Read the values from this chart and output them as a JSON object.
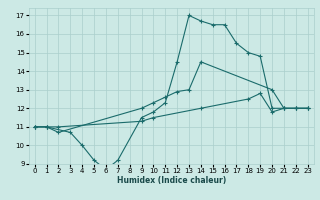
{
  "xlabel": "Humidex (Indice chaleur)",
  "xlim": [
    -0.5,
    23.5
  ],
  "ylim": [
    9,
    17.4
  ],
  "yticks": [
    9,
    10,
    11,
    12,
    13,
    14,
    15,
    16,
    17
  ],
  "xticks": [
    0,
    1,
    2,
    3,
    4,
    5,
    6,
    7,
    8,
    9,
    10,
    11,
    12,
    13,
    14,
    15,
    16,
    17,
    18,
    19,
    20,
    21,
    22,
    23
  ],
  "bg_color": "#cce9e5",
  "grid_color": "#aacfcc",
  "line_color": "#1a6b6b",
  "lines": [
    {
      "x": [
        0,
        1,
        3,
        4,
        5,
        6,
        7,
        9,
        10,
        11,
        12,
        13,
        14,
        15,
        16,
        17,
        18,
        19,
        20,
        21,
        22,
        23
      ],
      "y": [
        11,
        11,
        10.7,
        10,
        9.2,
        8.7,
        9.2,
        11.5,
        11.8,
        12.3,
        14.5,
        17.0,
        16.7,
        16.5,
        16.5,
        15.5,
        15.0,
        14.8,
        12.0,
        12.0,
        12.0,
        12.0
      ]
    },
    {
      "x": [
        0,
        1,
        2,
        9,
        10,
        11,
        12,
        13,
        14,
        20,
        21,
        22,
        23
      ],
      "y": [
        11,
        11,
        10.7,
        12.0,
        12.3,
        12.6,
        12.9,
        13.0,
        14.5,
        13.0,
        12.0,
        12.0,
        12.0
      ]
    },
    {
      "x": [
        0,
        1,
        2,
        9,
        10,
        14,
        18,
        19,
        20,
        21,
        22,
        23
      ],
      "y": [
        11,
        11,
        11.0,
        11.3,
        11.5,
        12.0,
        12.5,
        12.8,
        11.8,
        12.0,
        12.0,
        12.0
      ]
    }
  ]
}
